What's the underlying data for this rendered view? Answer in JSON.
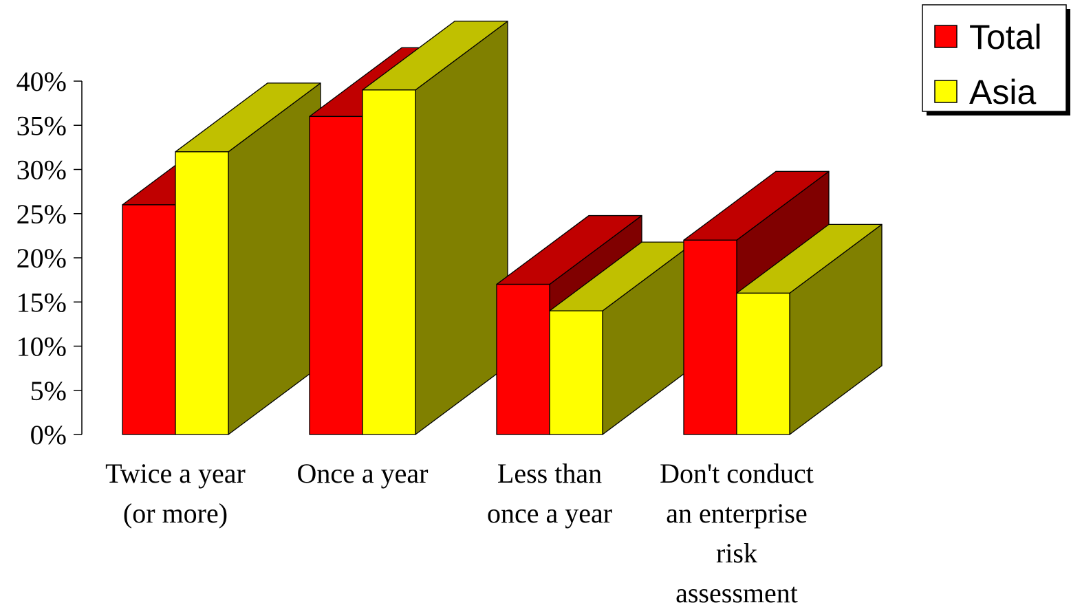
{
  "chart_data": {
    "type": "bar",
    "categories": [
      [
        "Twice a year",
        "(or more)"
      ],
      [
        "Once a year"
      ],
      [
        "Less than",
        "once a year"
      ],
      [
        "Don't conduct",
        "an enterprise",
        "risk",
        "assessment"
      ]
    ],
    "series": [
      {
        "name": "Total",
        "values": [
          26,
          36,
          17,
          22
        ],
        "color": "#ff0000",
        "top_color": "#c00000",
        "side_color": "#800000"
      },
      {
        "name": "Asia",
        "values": [
          32,
          39,
          14,
          16
        ],
        "color": "#ffff00",
        "top_color": "#c0c000",
        "side_color": "#808000"
      }
    ],
    "y_ticks": [
      "0%",
      "5%",
      "10%",
      "15%",
      "20%",
      "25%",
      "30%",
      "35%",
      "40%"
    ],
    "ylim": [
      0,
      40
    ],
    "title": "",
    "xlabel": "",
    "ylabel": "",
    "legend_position": "top-right",
    "grid": false
  }
}
